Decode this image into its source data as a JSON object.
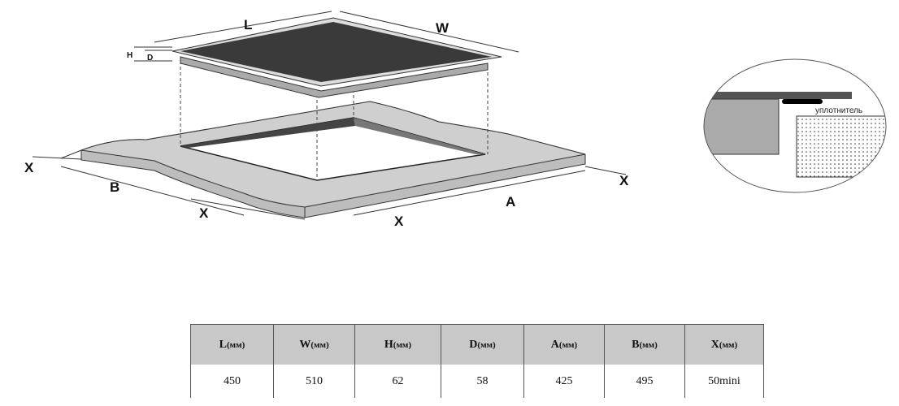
{
  "diagram": {
    "labels": {
      "L": "L",
      "W": "W",
      "H": "H",
      "D": "D",
      "A": "A",
      "B": "B",
      "X": "X"
    },
    "seal_label": "уплотнитель"
  },
  "table": {
    "headers": [
      {
        "name": "L",
        "unit": "(мм)"
      },
      {
        "name": "W",
        "unit": "(мм)"
      },
      {
        "name": "H",
        "unit": "(мм)"
      },
      {
        "name": "D",
        "unit": "(мм)"
      },
      {
        "name": "A",
        "unit": "(мм)"
      },
      {
        "name": "B",
        "unit": "(мм)"
      },
      {
        "name": "X",
        "unit": "(мм)"
      }
    ],
    "values": [
      "450",
      "510",
      "62",
      "58",
      "425",
      "495",
      "50mini"
    ]
  }
}
